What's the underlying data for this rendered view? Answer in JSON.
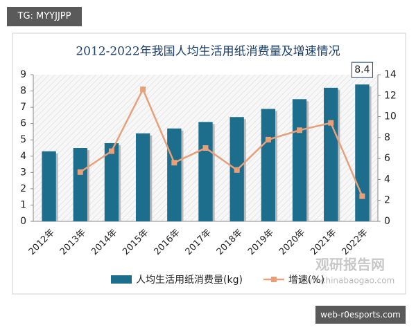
{
  "header": {
    "tag": "TG: MYYJJPP"
  },
  "chart_data": {
    "type": "bar",
    "title": "2012-2022年我国人均生活用纸消费量及增速情况",
    "categories": [
      "2012年",
      "2013年",
      "2014年",
      "2015年",
      "2016年",
      "2017年",
      "2018年",
      "2019年",
      "2020年",
      "2021年",
      "2022年"
    ],
    "series": [
      {
        "name": "人均生活用纸消费量(kg)",
        "type": "bar",
        "color": "#1c6e8c",
        "values": [
          4.3,
          4.5,
          4.8,
          5.4,
          5.7,
          6.1,
          6.4,
          6.9,
          7.5,
          8.2,
          8.4
        ]
      },
      {
        "name": "增速(%)",
        "type": "line",
        "axis": "y2",
        "color": "#e8a07a",
        "values": [
          null,
          4.7,
          6.7,
          12.6,
          5.6,
          7.0,
          4.9,
          7.8,
          8.7,
          9.4,
          2.4
        ]
      }
    ],
    "ylim": [
      0,
      9
    ],
    "yticks": [
      0,
      1,
      2,
      3,
      4,
      5,
      6,
      7,
      8,
      9
    ],
    "y2lim": [
      0,
      14
    ],
    "y2ticks": [
      0,
      2,
      4,
      6,
      8,
      10,
      12,
      14
    ],
    "legend": "bottom"
  },
  "watermark": {
    "brand": "观研报告网",
    "url": "www.chinabaogao.com"
  },
  "footer": {
    "site": "web-r0esports.com"
  }
}
